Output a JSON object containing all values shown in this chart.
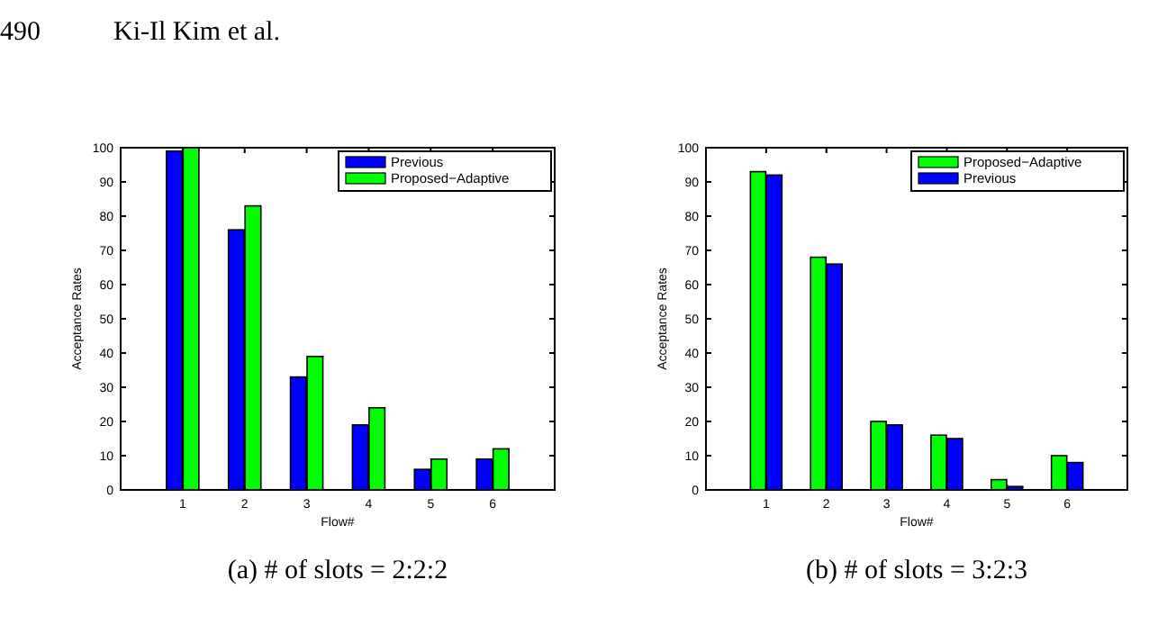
{
  "chart_data": [
    {
      "type": "bar",
      "title": "(a) # of slots = 2:2:2",
      "xlabel": "Flow#",
      "ylabel": "Acceptance Rates",
      "categories": [
        "1",
        "2",
        "3",
        "4",
        "5",
        "6"
      ],
      "series": [
        {
          "name": "Previous",
          "color": "#0000ff",
          "values": [
            99,
            76,
            33,
            19,
            6,
            9
          ]
        },
        {
          "name": "Proposed−Adaptive",
          "color": "#00ff00",
          "values": [
            100,
            83,
            39,
            24,
            9,
            12
          ]
        }
      ],
      "ylim": [
        0,
        100
      ],
      "yticks": [
        0,
        10,
        20,
        30,
        40,
        50,
        60,
        70,
        80,
        90,
        100
      ],
      "grid": false,
      "legend": "top right",
      "annotations": [
        "490",
        "Ki-Il Kim et al."
      ]
    },
    {
      "type": "bar",
      "title": "(b) # of slots = 3:2:3",
      "xlabel": "Flow#",
      "ylabel": "Acceptance Rates",
      "categories": [
        "1",
        "2",
        "3",
        "4",
        "5",
        "6"
      ],
      "series": [
        {
          "name": "Proposed−Adaptive",
          "color": "#00ff00",
          "values": [
            93,
            68,
            20,
            16,
            3,
            10
          ]
        },
        {
          "name": "Previous",
          "color": "#0000ff",
          "values": [
            92,
            66,
            19,
            15,
            1,
            8
          ]
        }
      ],
      "ylim": [
        0,
        100
      ],
      "yticks": [
        0,
        10,
        20,
        30,
        40,
        50,
        60,
        70,
        80,
        90,
        100
      ],
      "grid": false,
      "legend": "top right"
    }
  ]
}
